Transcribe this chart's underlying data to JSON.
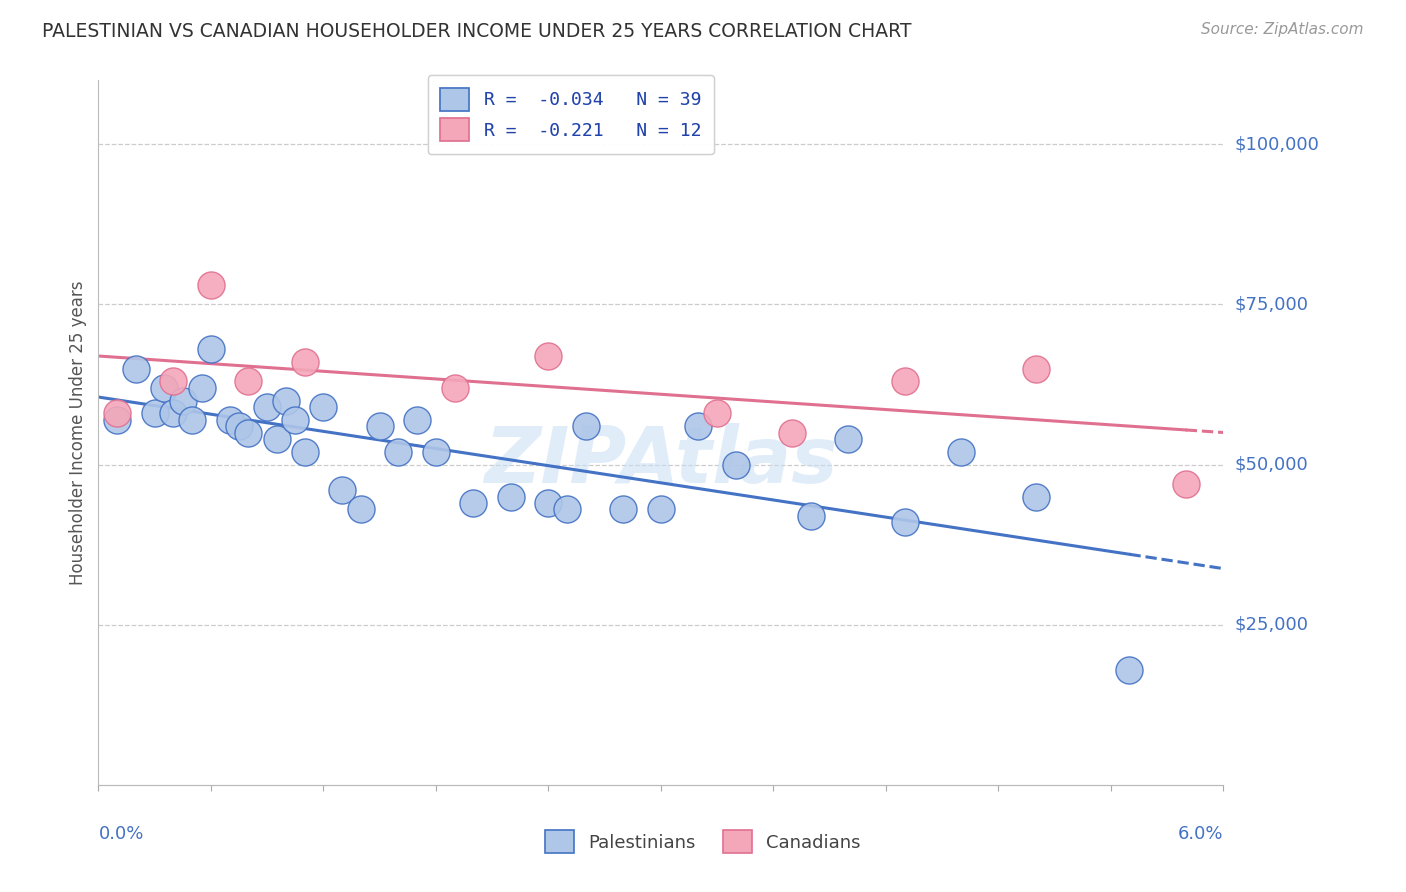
{
  "title": "PALESTINIAN VS CANADIAN HOUSEHOLDER INCOME UNDER 25 YEARS CORRELATION CHART",
  "source": "Source: ZipAtlas.com",
  "ylabel": "Householder Income Under 25 years",
  "xmin": 0.0,
  "xmax": 0.06,
  "ymin": 0,
  "ymax": 110000,
  "yticks": [
    25000,
    50000,
    75000,
    100000
  ],
  "ytick_labels": [
    "$25,000",
    "$50,000",
    "$75,000",
    "$100,000"
  ],
  "watermark": "ZIPAtlas",
  "legend_line1": "R =  -0.034   N = 39",
  "legend_line2": "R =  -0.221   N = 12",
  "pal_face_color": "#aec6e8",
  "pal_edge_color": "#4472c4",
  "can_face_color": "#f4a7b9",
  "can_edge_color": "#e07090",
  "pal_line_color": "#4472c4",
  "can_line_color": "#e07090",
  "axis_label_color": "#4472c4",
  "grid_color": "#cccccc",
  "title_color": "#333333",
  "source_color": "#999999",
  "ylabel_color": "#555555",
  "watermark_color": "#c8dff5",
  "legend_text_color": "#2244aa",
  "bottom_legend_color": "#444444",
  "palestinians_x": [
    0.001,
    0.002,
    0.003,
    0.0035,
    0.004,
    0.0045,
    0.005,
    0.0055,
    0.006,
    0.007,
    0.0075,
    0.008,
    0.009,
    0.0095,
    0.01,
    0.0105,
    0.011,
    0.012,
    0.013,
    0.014,
    0.015,
    0.016,
    0.017,
    0.018,
    0.02,
    0.022,
    0.024,
    0.025,
    0.026,
    0.028,
    0.03,
    0.032,
    0.034,
    0.038,
    0.04,
    0.043,
    0.046,
    0.05,
    0.055
  ],
  "palestinians_y": [
    57000,
    65000,
    58000,
    62000,
    58000,
    60000,
    57000,
    62000,
    68000,
    57000,
    56000,
    55000,
    59000,
    54000,
    60000,
    57000,
    52000,
    59000,
    46000,
    43000,
    56000,
    52000,
    57000,
    52000,
    44000,
    45000,
    44000,
    43000,
    56000,
    43000,
    43000,
    56000,
    50000,
    42000,
    54000,
    41000,
    52000,
    45000,
    18000
  ],
  "canadians_x": [
    0.001,
    0.004,
    0.006,
    0.008,
    0.011,
    0.019,
    0.024,
    0.033,
    0.037,
    0.043,
    0.05,
    0.058
  ],
  "canadians_y": [
    58000,
    63000,
    78000,
    63000,
    66000,
    62000,
    67000,
    58000,
    55000,
    63000,
    65000,
    47000
  ]
}
